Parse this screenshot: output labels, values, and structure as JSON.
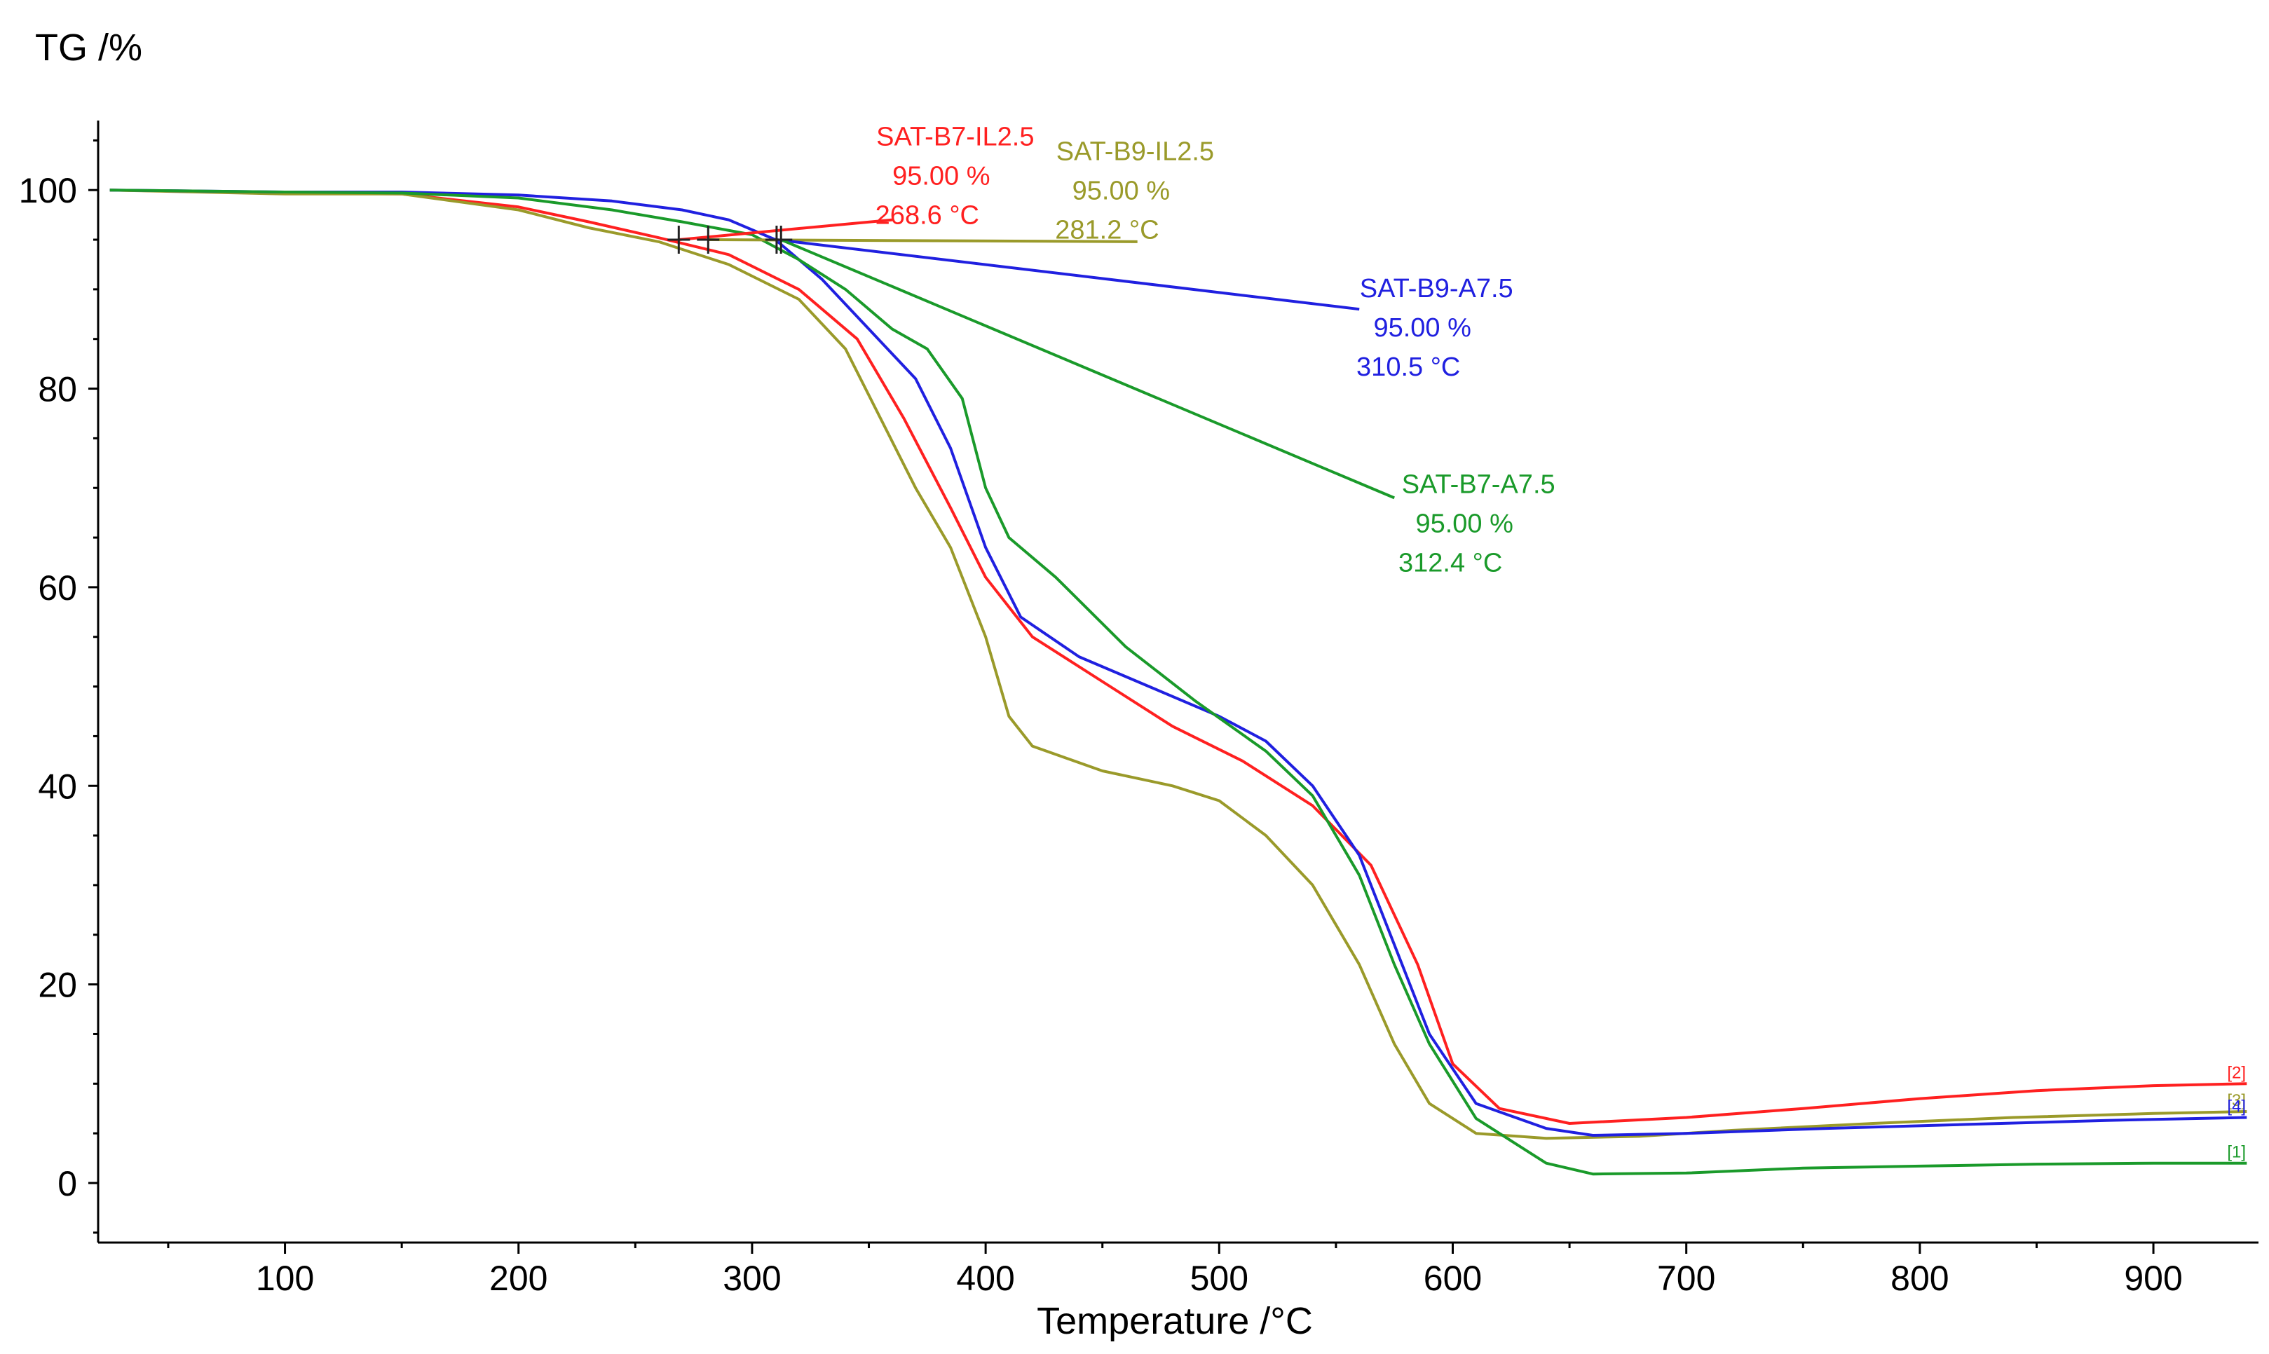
{
  "chart_data": {
    "type": "line",
    "title": "",
    "ylabel": "TG /%",
    "xlabel": "Temperature /°C",
    "xlim": [
      20,
      945
    ],
    "ylim": [
      -6,
      107
    ],
    "xticks": [
      100,
      200,
      300,
      400,
      500,
      600,
      700,
      800,
      900
    ],
    "yticks": [
      0,
      20,
      40,
      60,
      80,
      100
    ],
    "grid": false,
    "series": [
      {
        "name": "SAT-B7-IL2.5",
        "color": "#ff2020",
        "end_tag": "[2]",
        "points": [
          [
            25,
            100
          ],
          [
            100,
            99.7
          ],
          [
            150,
            99.6
          ],
          [
            200,
            98.3
          ],
          [
            230,
            96.8
          ],
          [
            260,
            95.2
          ],
          [
            290,
            93.5
          ],
          [
            320,
            90.0
          ],
          [
            345,
            85.0
          ],
          [
            365,
            77.0
          ],
          [
            385,
            68.0
          ],
          [
            400,
            61.0
          ],
          [
            420,
            55.0
          ],
          [
            450,
            50.5
          ],
          [
            480,
            46.0
          ],
          [
            510,
            42.5
          ],
          [
            540,
            38.0
          ],
          [
            565,
            32.0
          ],
          [
            585,
            22.0
          ],
          [
            600,
            12.0
          ],
          [
            620,
            7.5
          ],
          [
            650,
            6.0
          ],
          [
            700,
            6.6
          ],
          [
            750,
            7.5
          ],
          [
            800,
            8.5
          ],
          [
            850,
            9.3
          ],
          [
            900,
            9.8
          ],
          [
            940,
            10.0
          ]
        ],
        "marker": {
          "temperature": 268.6,
          "mass": 95.0
        },
        "annotation": {
          "name": "SAT-B7-IL2.5",
          "mass_text": "95.00 %",
          "temp_text": "268.6 °C",
          "leader_end": [
            360,
            97.0
          ],
          "label_anchor": [
            366,
            104.5
          ]
        }
      },
      {
        "name": "SAT-B9-IL2.5",
        "color": "#9a9a2a",
        "end_tag": "[3]",
        "points": [
          [
            25,
            100
          ],
          [
            100,
            99.6
          ],
          [
            150,
            99.6
          ],
          [
            200,
            98.0
          ],
          [
            230,
            96.2
          ],
          [
            260,
            94.8
          ],
          [
            290,
            92.5
          ],
          [
            320,
            89.0
          ],
          [
            340,
            84.0
          ],
          [
            355,
            77.0
          ],
          [
            370,
            70.0
          ],
          [
            385,
            64.0
          ],
          [
            400,
            55.0
          ],
          [
            410,
            47.0
          ],
          [
            420,
            44.0
          ],
          [
            450,
            41.5
          ],
          [
            480,
            40.0
          ],
          [
            500,
            38.5
          ],
          [
            520,
            35.0
          ],
          [
            540,
            30.0
          ],
          [
            560,
            22.0
          ],
          [
            575,
            14.0
          ],
          [
            590,
            8.0
          ],
          [
            610,
            5.0
          ],
          [
            640,
            4.5
          ],
          [
            680,
            4.7
          ],
          [
            720,
            5.3
          ],
          [
            780,
            6.0
          ],
          [
            840,
            6.6
          ],
          [
            900,
            7.0
          ],
          [
            940,
            7.2
          ]
        ],
        "marker": {
          "temperature": 281.2,
          "mass": 95.0
        },
        "annotation": {
          "name": "SAT-B9-IL2.5",
          "mass_text": "95.00 %",
          "temp_text": "281.2 °C",
          "leader_end": [
            465,
            94.8
          ],
          "label_anchor": [
            443,
            103.0
          ]
        }
      },
      {
        "name": "SAT-B9-A7.5",
        "color": "#2020e0",
        "end_tag": "[4]",
        "points": [
          [
            25,
            100
          ],
          [
            100,
            99.8
          ],
          [
            150,
            99.8
          ],
          [
            200,
            99.5
          ],
          [
            240,
            98.9
          ],
          [
            270,
            98.0
          ],
          [
            290,
            97.0
          ],
          [
            310,
            95.0
          ],
          [
            330,
            91.0
          ],
          [
            350,
            86.0
          ],
          [
            370,
            81.0
          ],
          [
            385,
            74.0
          ],
          [
            400,
            64.0
          ],
          [
            415,
            57.0
          ],
          [
            440,
            53.0
          ],
          [
            470,
            50.0
          ],
          [
            500,
            47.0
          ],
          [
            520,
            44.5
          ],
          [
            540,
            40.0
          ],
          [
            560,
            33.0
          ],
          [
            575,
            24.0
          ],
          [
            590,
            15.0
          ],
          [
            610,
            8.0
          ],
          [
            640,
            5.5
          ],
          [
            660,
            4.8
          ],
          [
            700,
            5.0
          ],
          [
            760,
            5.5
          ],
          [
            820,
            5.9
          ],
          [
            880,
            6.3
          ],
          [
            940,
            6.6
          ]
        ],
        "marker": {
          "temperature": 310.5,
          "mass": 95.0
        },
        "annotation": {
          "name": "SAT-B9-A7.5",
          "mass_text": "95.00 %",
          "temp_text": "310.5 °C",
          "leader_end": [
            560,
            88.0
          ],
          "label_anchor": [
            572,
            89.2
          ]
        }
      },
      {
        "name": "SAT-B7-A7.5",
        "color": "#1a9a2a",
        "end_tag": "[1]",
        "points": [
          [
            25,
            100
          ],
          [
            100,
            99.8
          ],
          [
            150,
            99.7
          ],
          [
            200,
            99.2
          ],
          [
            240,
            98.0
          ],
          [
            270,
            96.8
          ],
          [
            300,
            95.5
          ],
          [
            320,
            93.0
          ],
          [
            340,
            90.0
          ],
          [
            360,
            86.0
          ],
          [
            375,
            84.0
          ],
          [
            390,
            79.0
          ],
          [
            400,
            70.0
          ],
          [
            410,
            65.0
          ],
          [
            430,
            61.0
          ],
          [
            460,
            54.0
          ],
          [
            490,
            48.5
          ],
          [
            520,
            43.5
          ],
          [
            540,
            39.0
          ],
          [
            560,
            31.0
          ],
          [
            575,
            22.0
          ],
          [
            590,
            14.0
          ],
          [
            610,
            6.5
          ],
          [
            640,
            2.0
          ],
          [
            660,
            0.9
          ],
          [
            700,
            1.0
          ],
          [
            750,
            1.5
          ],
          [
            800,
            1.7
          ],
          [
            850,
            1.9
          ],
          [
            900,
            2.0
          ],
          [
            940,
            2.0
          ]
        ],
        "marker": {
          "temperature": 312.4,
          "mass": 95.0
        },
        "annotation": {
          "name": "SAT-B7-A7.5",
          "mass_text": "95.00 %",
          "temp_text": "312.4 °C",
          "leader_end": [
            575,
            69.0
          ],
          "label_anchor": [
            590,
            69.5
          ]
        }
      }
    ]
  }
}
